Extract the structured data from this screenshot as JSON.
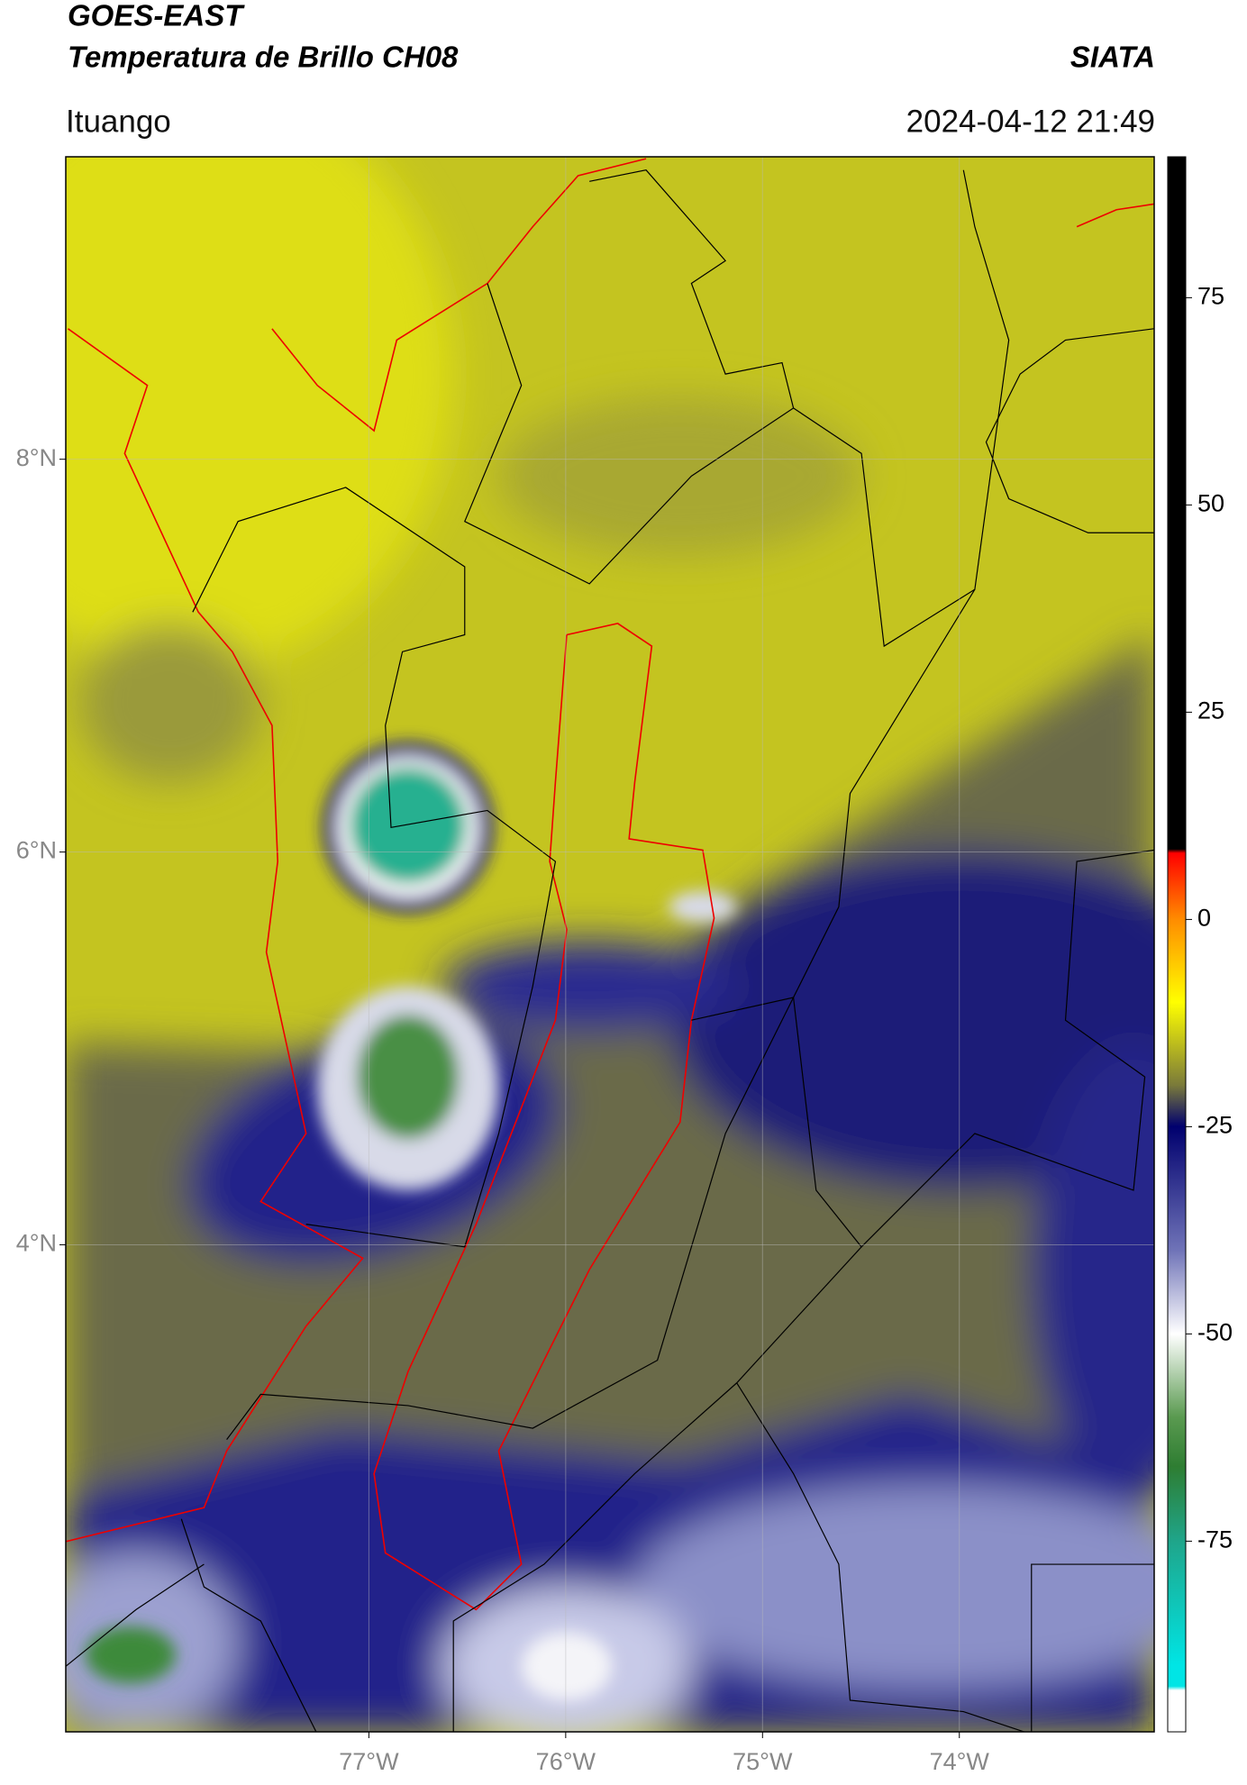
{
  "header": {
    "title": "GOES-EAST",
    "subtitle": "Temperatura de Brillo CH08",
    "brand": "SIATA",
    "location": "Ituango",
    "datetime": "2024-04-12 21:49"
  },
  "map": {
    "xlim": [
      -78.54,
      -73.01
    ],
    "ylim": [
      1.52,
      9.54
    ],
    "xticks": [
      {
        "value": -77,
        "label": "77°W"
      },
      {
        "value": -76,
        "label": "76°W"
      },
      {
        "value": -75,
        "label": "75°W"
      },
      {
        "value": -74,
        "label": "74°W"
      }
    ],
    "yticks": [
      {
        "value": 8,
        "label": "8°N"
      },
      {
        "value": 6,
        "label": "6°N"
      },
      {
        "value": 4,
        "label": "4°N"
      }
    ],
    "grid": true
  },
  "colorbar": {
    "lim": [
      -98,
      92
    ],
    "ticks": [
      75,
      50,
      25,
      0,
      -25,
      -50,
      -75
    ],
    "stops": [
      {
        "value": 92,
        "color": "#000000"
      },
      {
        "value": 8.5,
        "color": "#000000"
      },
      {
        "value": 8,
        "color": "#ff0000"
      },
      {
        "value": 0,
        "color": "#ff8c00"
      },
      {
        "value": -10,
        "color": "#ffff00"
      },
      {
        "value": -20,
        "color": "#7a7a3a"
      },
      {
        "value": -25,
        "color": "#00006e"
      },
      {
        "value": -40,
        "color": "#7074b8"
      },
      {
        "value": -50,
        "color": "#ffffff"
      },
      {
        "value": -60,
        "color": "#5a9a50"
      },
      {
        "value": -66,
        "color": "#2e7d32"
      },
      {
        "value": -75,
        "color": "#1fa58a"
      },
      {
        "value": -90,
        "color": "#00e5e5"
      },
      {
        "value": -92.5,
        "color": "#00e5e5"
      },
      {
        "value": -93,
        "color": "#ffffff"
      },
      {
        "value": -98,
        "color": "#ffffff"
      }
    ]
  }
}
